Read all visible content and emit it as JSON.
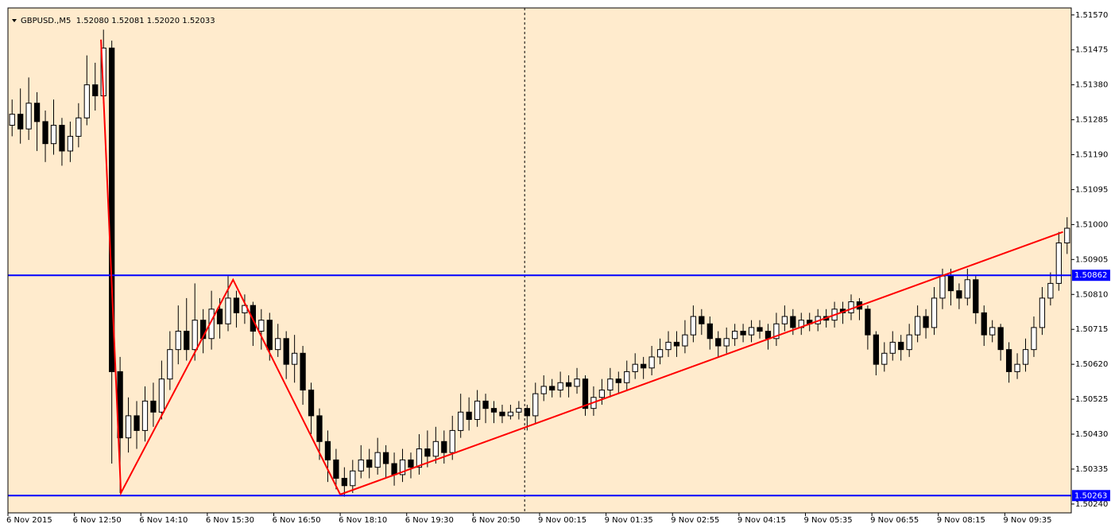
{
  "chart_data": {
    "type": "candlestick",
    "title": "GBPUSD.,M5  1.52080 1.52081 1.52020 1.52033",
    "background": "#ffebcd",
    "up_color": "#ffffff",
    "down_color": "#000000",
    "wick_color": "#000000",
    "ylim": [
      1.50216,
      1.51589
    ],
    "yticks": [
      {
        "value": 1.5157,
        "label": "1.51570"
      },
      1.51475,
      {
        "value": 1.5138,
        "label": "1.51380"
      },
      1.51285,
      {
        "value": 1.5119,
        "label": "1.51190"
      },
      1.51095,
      {
        "value": 1.51,
        "label": "1.51000"
      },
      1.50905,
      {
        "value": 1.5081,
        "label": "1.50810"
      },
      1.50715,
      {
        "value": 1.5062,
        "label": "1.50620"
      },
      1.50525,
      {
        "value": 1.5043,
        "label": "1.50430"
      },
      1.50335,
      {
        "value": 1.5024,
        "label": "1.50240"
      }
    ],
    "xlim": [
      0,
      128
    ],
    "xticks": [
      {
        "value": 0,
        "label": "6 Nov 2015"
      },
      {
        "value": 8,
        "label": "6 Nov 12:50"
      },
      {
        "value": 16,
        "label": "6 Nov 14:10"
      },
      {
        "value": 24,
        "label": "6 Nov 15:30"
      },
      {
        "value": 32,
        "label": "6 Nov 16:50"
      },
      {
        "value": 40,
        "label": "6 Nov 18:10"
      },
      {
        "value": 48,
        "label": "6 Nov 19:30"
      },
      {
        "value": 56,
        "label": "6 Nov 20:50"
      },
      {
        "value": 64,
        "label": "9 Nov 00:15"
      },
      {
        "value": 72,
        "label": "9 Nov 01:35"
      },
      {
        "value": 80,
        "label": "9 Nov 02:55"
      },
      {
        "value": 88,
        "label": "9 Nov 04:15"
      },
      {
        "value": 96,
        "label": "9 Nov 05:35"
      },
      {
        "value": 104,
        "label": "9 Nov 06:55"
      },
      {
        "value": 112,
        "label": "9 Nov 08:15"
      },
      {
        "value": 120,
        "label": "9 Nov 09:35"
      }
    ],
    "open": [
      1.5127,
      1.513,
      1.5126,
      1.5133,
      1.5128,
      1.5122,
      1.5127,
      1.512,
      1.5124,
      1.5129,
      1.5138,
      1.5135,
      1.5148,
      1.506,
      1.5042,
      1.5048,
      1.5044,
      1.5052,
      1.5049,
      1.5058,
      1.5066,
      1.5071,
      1.5066,
      1.5074,
      1.5069,
      1.5077,
      1.5073,
      1.508,
      1.5076,
      1.5078,
      1.5071,
      1.5074,
      1.5066,
      1.5069,
      1.5062,
      1.5065,
      1.5055,
      1.5048,
      1.5041,
      1.5036,
      1.5031,
      1.5029,
      1.5033,
      1.5036,
      1.5034,
      1.5038,
      1.5035,
      1.5032,
      1.5036,
      1.5034,
      1.5039,
      1.5037,
      1.5041,
      1.5038,
      1.5044,
      1.5049,
      1.5047,
      1.5052,
      1.505,
      1.5049,
      1.5048,
      1.5049,
      1.505,
      1.5048,
      1.5054,
      1.5056,
      1.5055,
      1.5057,
      1.5056,
      1.5058,
      1.505,
      1.5053,
      1.5055,
      1.5058,
      1.5057,
      1.506,
      1.5062,
      1.5061,
      1.5064,
      1.5066,
      1.5068,
      1.5067,
      1.507,
      1.5075,
      1.5073,
      1.5069,
      1.5067,
      1.5069,
      1.5071,
      1.507,
      1.5072,
      1.5071,
      1.5069,
      1.5073,
      1.5075,
      1.5072,
      1.5074,
      1.5073,
      1.5075,
      1.5074,
      1.5077,
      1.5076,
      1.5079,
      1.5077,
      1.507,
      1.5062,
      1.5065,
      1.5068,
      1.5066,
      1.507,
      1.5075,
      1.5072,
      1.508,
      1.5086,
      1.5082,
      1.508,
      1.5085,
      1.5076,
      1.507,
      1.5072,
      1.5066,
      1.506,
      1.5062,
      1.5066,
      1.5072,
      1.508,
      1.5084,
      1.5095
    ],
    "high": [
      1.5134,
      1.5137,
      1.514,
      1.5136,
      1.5131,
      1.5134,
      1.5129,
      1.5128,
      1.5133,
      1.5146,
      1.5144,
      1.5153,
      1.515,
      1.5064,
      1.5053,
      1.5052,
      1.5056,
      1.5057,
      1.5063,
      1.5071,
      1.5078,
      1.508,
      1.5084,
      1.5077,
      1.5082,
      1.508,
      1.5086,
      1.5082,
      1.5081,
      1.5079,
      1.5077,
      1.5076,
      1.5073,
      1.5071,
      1.507,
      1.5067,
      1.5057,
      1.505,
      1.5044,
      1.5039,
      1.5034,
      1.5036,
      1.504,
      1.5039,
      1.5042,
      1.504,
      1.5038,
      1.5039,
      1.5038,
      1.5043,
      1.5044,
      1.5045,
      1.5044,
      1.5048,
      1.5054,
      1.5053,
      1.5055,
      1.5054,
      1.5052,
      1.5051,
      1.5051,
      1.5052,
      1.5051,
      1.5057,
      1.5059,
      1.5058,
      1.506,
      1.5059,
      1.5061,
      1.5059,
      1.5056,
      1.5058,
      1.5061,
      1.506,
      1.5063,
      1.5065,
      1.5064,
      1.5067,
      1.5069,
      1.5071,
      1.5071,
      1.5074,
      1.5078,
      1.5077,
      1.5075,
      1.5071,
      1.5072,
      1.5073,
      1.5073,
      1.5074,
      1.5074,
      1.5073,
      1.5076,
      1.5078,
      1.5077,
      1.5076,
      1.5076,
      1.5077,
      1.5077,
      1.5079,
      1.5079,
      1.5081,
      1.508,
      1.5078,
      1.5071,
      1.5068,
      1.5071,
      1.507,
      1.5073,
      1.5078,
      1.5077,
      1.5083,
      1.5088,
      1.5088,
      1.5084,
      1.5088,
      1.5086,
      1.5078,
      1.5074,
      1.5073,
      1.5068,
      1.5065,
      1.5069,
      1.5075,
      1.5083,
      1.5087,
      1.5098,
      1.5102
    ],
    "low": [
      1.5124,
      1.5122,
      1.5123,
      1.512,
      1.5117,
      1.5119,
      1.5116,
      1.5117,
      1.5121,
      1.5127,
      1.5131,
      1.5133,
      1.5035,
      1.5027,
      1.5038,
      1.5039,
      1.5041,
      1.5045,
      1.5047,
      1.5055,
      1.5062,
      1.5063,
      1.5063,
      1.5065,
      1.5066,
      1.5069,
      1.5071,
      1.5072,
      1.5073,
      1.5067,
      1.5066,
      1.5063,
      1.5064,
      1.5058,
      1.5057,
      1.5051,
      1.5043,
      1.5036,
      1.503,
      1.5028,
      1.5026,
      1.5027,
      1.5031,
      1.5031,
      1.5032,
      1.5031,
      1.5029,
      1.503,
      1.5031,
      1.5032,
      1.5034,
      1.5035,
      1.5035,
      1.5036,
      1.5042,
      1.5044,
      1.5045,
      1.5046,
      1.5046,
      1.5046,
      1.5047,
      1.5047,
      1.5044,
      1.5046,
      1.5052,
      1.5053,
      1.5053,
      1.5053,
      1.5054,
      1.5048,
      1.5048,
      1.5051,
      1.5053,
      1.5054,
      1.5055,
      1.5058,
      1.5058,
      1.5059,
      1.5062,
      1.5064,
      1.5064,
      1.5065,
      1.5068,
      1.507,
      1.5066,
      1.5064,
      1.5065,
      1.5067,
      1.5068,
      1.5068,
      1.5069,
      1.5066,
      1.5067,
      1.5071,
      1.507,
      1.507,
      1.5071,
      1.5071,
      1.5072,
      1.5072,
      1.5073,
      1.5074,
      1.5074,
      1.5066,
      1.5059,
      1.506,
      1.5063,
      1.5063,
      1.5064,
      1.5068,
      1.5069,
      1.507,
      1.5077,
      1.5078,
      1.5077,
      1.5078,
      1.5073,
      1.5067,
      1.5068,
      1.5063,
      1.5057,
      1.5058,
      1.506,
      1.5064,
      1.507,
      1.5078,
      1.5082,
      1.5092
    ],
    "close": [
      1.513,
      1.5126,
      1.5133,
      1.5128,
      1.5122,
      1.5127,
      1.512,
      1.5124,
      1.5129,
      1.5138,
      1.5135,
      1.5148,
      1.506,
      1.5042,
      1.5048,
      1.5044,
      1.5052,
      1.5049,
      1.5058,
      1.5066,
      1.5071,
      1.5066,
      1.5074,
      1.5069,
      1.5077,
      1.5073,
      1.508,
      1.5076,
      1.5078,
      1.5071,
      1.5074,
      1.5066,
      1.5069,
      1.5062,
      1.5065,
      1.5055,
      1.5048,
      1.5041,
      1.5036,
      1.5031,
      1.5029,
      1.5033,
      1.5036,
      1.5034,
      1.5038,
      1.5035,
      1.5032,
      1.5036,
      1.5034,
      1.5039,
      1.5037,
      1.5041,
      1.5038,
      1.5044,
      1.5049,
      1.5047,
      1.5052,
      1.505,
      1.5049,
      1.5048,
      1.5049,
      1.505,
      1.5048,
      1.5054,
      1.5056,
      1.5055,
      1.5057,
      1.5056,
      1.5058,
      1.505,
      1.5053,
      1.5055,
      1.5058,
      1.5057,
      1.506,
      1.5062,
      1.5061,
      1.5064,
      1.5066,
      1.5068,
      1.5067,
      1.507,
      1.5075,
      1.5073,
      1.5069,
      1.5067,
      1.5069,
      1.5071,
      1.507,
      1.5072,
      1.5071,
      1.5069,
      1.5073,
      1.5075,
      1.5072,
      1.5074,
      1.5073,
      1.5075,
      1.5074,
      1.5077,
      1.5076,
      1.5079,
      1.5077,
      1.507,
      1.5062,
      1.5065,
      1.5068,
      1.5066,
      1.507,
      1.5075,
      1.5072,
      1.508,
      1.5086,
      1.5082,
      1.508,
      1.5085,
      1.5076,
      1.507,
      1.5072,
      1.5066,
      1.506,
      1.5062,
      1.5066,
      1.5072,
      1.508,
      1.5084,
      1.5095,
      1.5099
    ],
    "hlines": {
      "color": "#0000ff",
      "label_color": "#ffffff",
      "values": [
        1.50862,
        1.50263
      ]
    },
    "vline": {
      "x": 62.2,
      "color": "#000000"
    },
    "trendlines": [
      {
        "color": "#ff0000",
        "x": [
          10.7,
          13.1,
          26.6,
          39.5
        ],
        "y": [
          1.51503,
          1.5027,
          1.5085,
          1.50266
        ]
      },
      {
        "color": "#ff0000",
        "x": [
          39.5,
          126.5
        ],
        "y": [
          1.50266,
          1.5098
        ]
      }
    ]
  }
}
